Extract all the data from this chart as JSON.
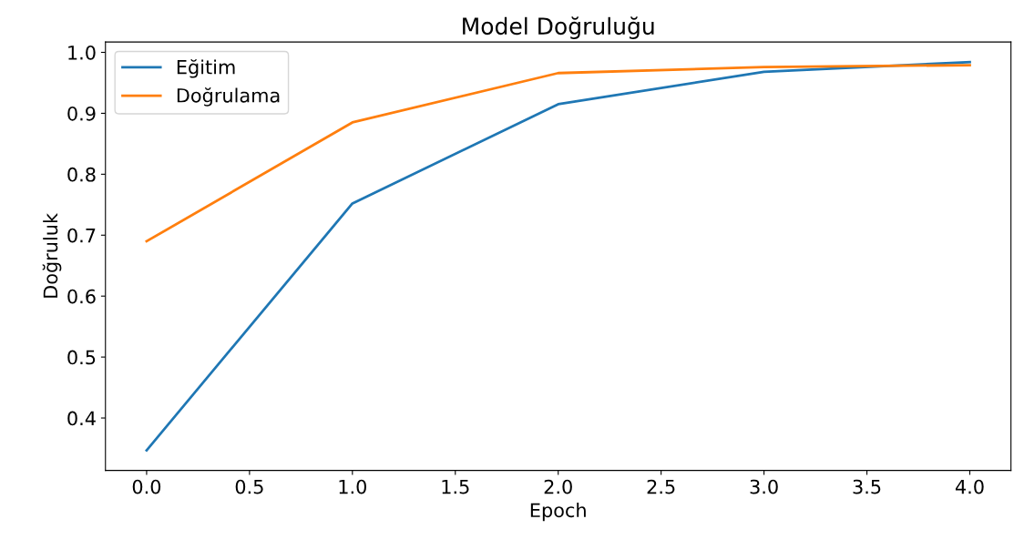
{
  "chart_data": {
    "type": "line",
    "title": "Model Doğruluğu",
    "xlabel": "Epoch",
    "ylabel": "Doğruluk",
    "x": [
      0,
      1,
      2,
      3,
      4
    ],
    "series": [
      {
        "name": "Eğitim",
        "color": "#1f77b4",
        "values": [
          0.347,
          0.752,
          0.915,
          0.968,
          0.984
        ]
      },
      {
        "name": "Doğrulama",
        "color": "#ff7f0e",
        "values": [
          0.69,
          0.885,
          0.966,
          0.976,
          0.979
        ]
      }
    ],
    "xlim": [
      -0.2,
      4.2
    ],
    "ylim": [
      0.314,
      1.017
    ],
    "xticks": [
      {
        "value": 0,
        "label": "0.0"
      },
      {
        "value": 0.5,
        "label": "0.5"
      },
      {
        "value": 1,
        "label": "1.0"
      },
      {
        "value": 1.5,
        "label": "1.5"
      },
      {
        "value": 2,
        "label": "2.0"
      },
      {
        "value": 2.5,
        "label": "2.5"
      },
      {
        "value": 3,
        "label": "3.0"
      },
      {
        "value": 3.5,
        "label": "3.5"
      },
      {
        "value": 4,
        "label": "4.0"
      }
    ],
    "yticks": [
      0.4,
      0.5,
      0.6,
      0.7,
      0.8,
      0.9,
      {
        "value": 1.0,
        "label": "1.0"
      }
    ],
    "legend": "top left",
    "grid": false,
    "marker": "none",
    "line_style": "solid"
  }
}
